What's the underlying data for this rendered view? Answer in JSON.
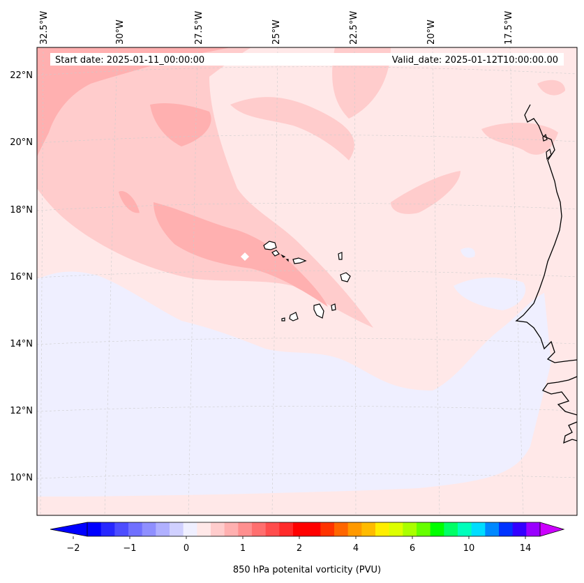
{
  "header": {
    "start_date": "Start date: 2025-01-11_00:00:00",
    "valid_date": "Valid_date: 2025-01-12T10:00:00.00"
  },
  "axes": {
    "lon_labels": [
      "32.5°W",
      "30°W",
      "27.5°W",
      "25°W",
      "22.5°W",
      "20°W",
      "17.5°W"
    ],
    "lat_labels": [
      "22°N",
      "20°N",
      "18°N",
      "16°N",
      "14°N",
      "12°N",
      "10°N"
    ]
  },
  "colorbar": {
    "title": "850 hPa potenital vorticity (PVU)",
    "ticks": [
      "−2",
      "−1",
      "0",
      "1",
      "2",
      "4",
      "6",
      "10",
      "14"
    ],
    "colors": [
      "#0000ff",
      "#2727ff",
      "#4d4dff",
      "#7070ff",
      "#8f8fff",
      "#b0b0ff",
      "#d0d0ff",
      "#efefff",
      "#ffe8e8",
      "#ffcccc",
      "#ffb0b0",
      "#ff8f8f",
      "#ff6f6f",
      "#ff4d4d",
      "#ff2a2a",
      "#ff0000",
      "#ff0000",
      "#ff3300",
      "#ff6600",
      "#ff9900",
      "#ffbb00",
      "#ffee00",
      "#ddff00",
      "#aaff00",
      "#66ff00",
      "#00ff00",
      "#00ff66",
      "#00ffbb",
      "#00ddff",
      "#0088ff",
      "#0033ff",
      "#3300ff",
      "#9900ff"
    ],
    "extend_low": "#0000ff",
    "extend_high": "#cc00ff"
  },
  "field_colors": {
    "background": "#ffe8e8",
    "light_blue": "#efefff",
    "pink": "#ffcccc",
    "dark_pink": "#ffb0b0"
  }
}
